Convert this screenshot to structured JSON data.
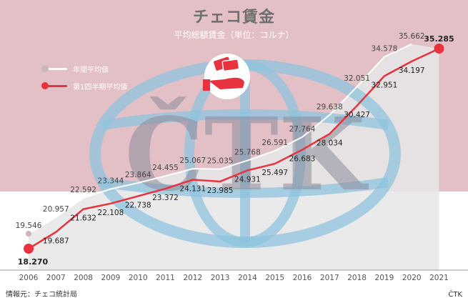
{
  "header": {
    "title": "チェコ賃金",
    "subtitle": "平均総額賃金（単位：コルナ）"
  },
  "footer": {
    "source": "情報元：チェコ統計局",
    "credit": "ČTK"
  },
  "watermark": {
    "text": "ČTK"
  },
  "legend": {
    "annual_label": "年間平均値",
    "q1_label": "第1四半期平均値"
  },
  "colors": {
    "band": "#e3c0c6",
    "area": "#e6e6e6",
    "annual_line": "#ffffff",
    "annual_marker": "#cbb6ba",
    "q1_line": "#e8323e",
    "q1_marker": "#e8323e",
    "globe": "#8fc3de",
    "watermark_text": "#8c8c9c",
    "icon_circle": "#ffffff",
    "icon_red": "#e8323e"
  },
  "chart_data": {
    "type": "line",
    "categories": [
      "2006",
      "2007",
      "2008",
      "2009",
      "2010",
      "2011",
      "2012",
      "2013",
      "2014",
      "2015",
      "2016",
      "2017",
      "2018",
      "2019",
      "2020",
      "2021"
    ],
    "series": [
      {
        "name": "年間平均値",
        "values": [
          19546,
          20957,
          22592,
          23344,
          23864,
          24455,
          25067,
          25035,
          25768,
          26591,
          27764,
          29638,
          32051,
          34578,
          35662,
          null
        ],
        "labels": [
          "19.546",
          "20.957",
          "22.592",
          "23.344",
          "23.864",
          "24.455",
          "25.067",
          "25.035",
          "25.768",
          "26.591",
          "27.764",
          "29.638",
          "32.051",
          "34.578",
          "35.662",
          ""
        ]
      },
      {
        "name": "第1四半期平均値",
        "values": [
          18270,
          19687,
          21632,
          22108,
          22738,
          23372,
          24131,
          23985,
          24931,
          25497,
          26683,
          28034,
          30427,
          32951,
          34197,
          35285
        ],
        "labels": [
          "18.270",
          "19.687",
          "21.632",
          "22.108",
          "22.738",
          "23.372",
          "24.131",
          "23.985",
          "24.931",
          "25.497",
          "26.683",
          "28.034",
          "30.427",
          "32.951",
          "34.197",
          "35.285"
        ]
      }
    ],
    "title": "チェコ賃金",
    "subtitle": "平均総額賃金（単位：コルナ）",
    "xlabel": "",
    "ylabel": "",
    "ylim": [
      17000,
      37000
    ],
    "grid": false,
    "legend_position": "top-left"
  }
}
